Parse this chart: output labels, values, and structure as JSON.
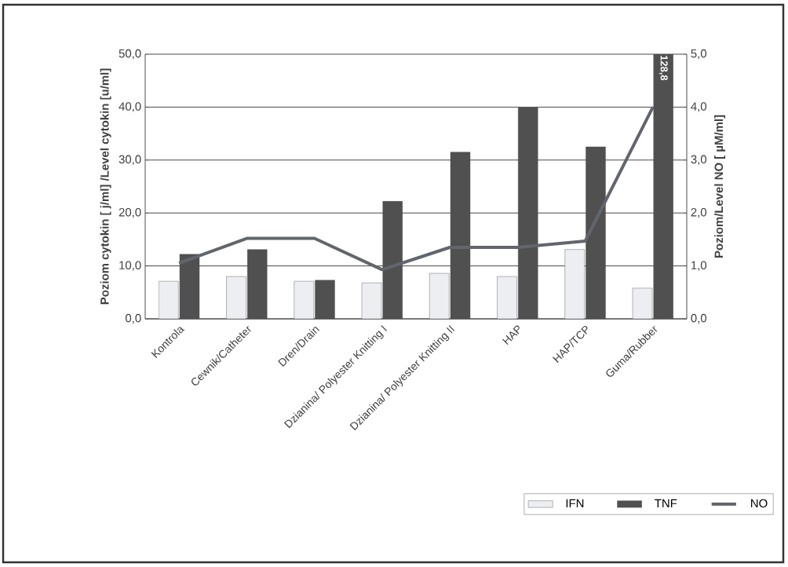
{
  "chart_data": {
    "type": "bar",
    "ylabel": "Poziom cytokin [ j/ml] /Level cytokin [u/ml]",
    "y2label": "Poziom/Level NO [ µM/ml]",
    "categories": [
      "Kontrola",
      "Cewnik/Catheter",
      "Dren/Drain",
      "Dzianina/ Polyester Knitting I",
      "Dzianina/ Polyester Knitting II",
      "HAP",
      "HAP/TCP",
      "Guma/Rubber"
    ],
    "series": [
      {
        "name": "IFN",
        "color": "#eceef2",
        "values": [
          7.1,
          8.0,
          7.1,
          6.8,
          8.6,
          8.0,
          13.1,
          5.8
        ]
      },
      {
        "name": "TNF",
        "color": "#505050",
        "values": [
          12.2,
          13.1,
          7.3,
          22.2,
          31.5,
          39.9,
          32.5,
          50
        ]
      },
      {
        "name": "NO",
        "type": "line",
        "axis": "y2",
        "color": "#62666c",
        "values": [
          1.05,
          1.52,
          1.52,
          0.93,
          1.35,
          1.35,
          1.47,
          4.0
        ]
      }
    ],
    "ylim": [
      0,
      50
    ],
    "yticks": [
      {
        "value": 0,
        "label": "0,0"
      },
      {
        "value": 10,
        "label": "10,0"
      },
      {
        "value": 20,
        "label": "20,0"
      },
      {
        "value": 30,
        "label": "30,0"
      },
      {
        "value": 40,
        "label": "40,0"
      },
      {
        "value": 50,
        "label": "50,0"
      }
    ],
    "y2lim": [
      0,
      5
    ],
    "y2ticks": [
      {
        "value": 0,
        "label": "0,0"
      },
      {
        "value": 1,
        "label": "1,0"
      },
      {
        "value": 2,
        "label": "2,0"
      },
      {
        "value": 3,
        "label": "3,0"
      },
      {
        "value": 4,
        "label": "4,0"
      },
      {
        "value": 5,
        "label": "5,0"
      }
    ],
    "annotations": [
      {
        "text": "128,8",
        "x": "Guma/Rubber",
        "y": 50
      }
    ],
    "grid": "y",
    "legend": "bottom right"
  }
}
